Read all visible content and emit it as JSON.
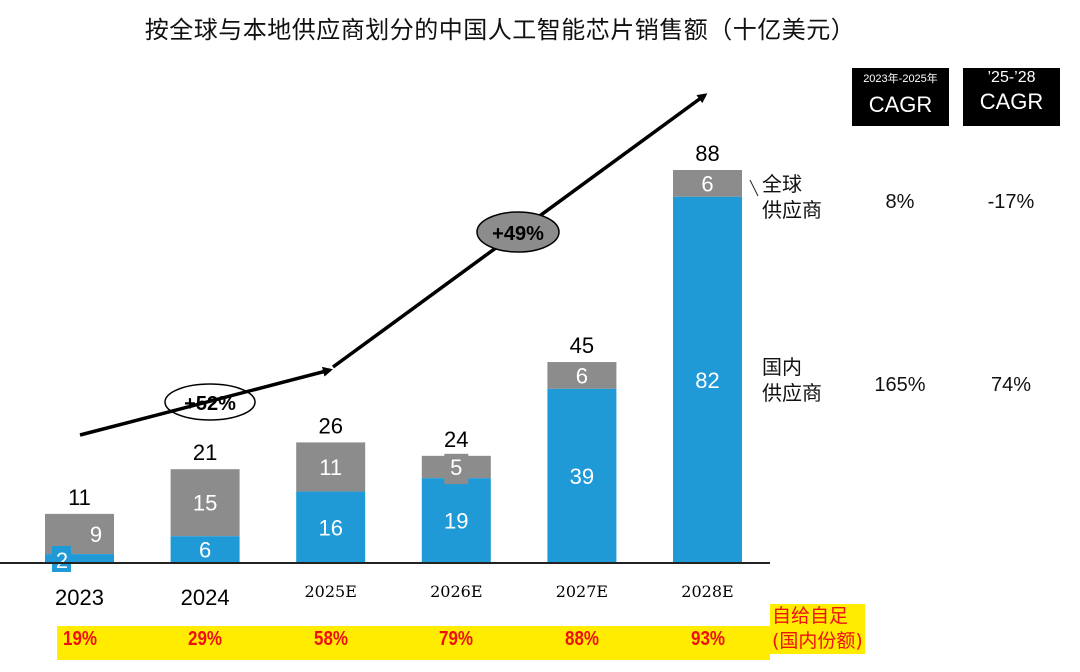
{
  "title": "按全球与本地供应商划分的中国人工智能芯片销售额（十亿美元）",
  "colors": {
    "global": "#8c8c8c",
    "domestic": "#1f9ad6",
    "band": "#ffec00",
    "band_text": "#ee1111"
  },
  "cagr_headers": [
    {
      "sub": "2023年-2025年",
      "main": "CAGR"
    },
    {
      "sub": "’25-’28",
      "main": "CAGR"
    }
  ],
  "rows": [
    {
      "label_line1": "全球",
      "label_line2": "供应商",
      "cagr_23_25": "8%",
      "cagr_25_28": "-17%"
    },
    {
      "label_line1": "国内",
      "label_line2": "供应商",
      "cagr_23_25": "165%",
      "cagr_25_28": "74%"
    }
  ],
  "growth_annotations": [
    {
      "label": "+52%",
      "period": "2023-2025"
    },
    {
      "label": "+49%",
      "period": "2025-2028"
    }
  ],
  "self_sufficiency": {
    "label_line1": "自给自足",
    "label_line2": "(国内份额)",
    "values": [
      "19%",
      "29%",
      "58%",
      "79%",
      "88%",
      "93%"
    ]
  },
  "chart_data": {
    "type": "bar",
    "stacked": true,
    "title": "按全球与本地供应商划分的中国人工智能芯片销售额（十亿美元）",
    "xlabel": "",
    "ylabel": "",
    "categories": [
      "2023",
      "2024",
      "2025E",
      "2026E",
      "2027E",
      "2028E"
    ],
    "series": [
      {
        "name": "国内供应商",
        "values": [
          2,
          6,
          16,
          19,
          39,
          82
        ]
      },
      {
        "name": "全球供应商",
        "values": [
          9,
          15,
          11,
          5,
          6,
          6
        ]
      }
    ],
    "totals": [
      11,
      21,
      26,
      24,
      45,
      88
    ],
    "ylim": [
      0,
      88
    ],
    "grid": false,
    "legend": "right"
  }
}
